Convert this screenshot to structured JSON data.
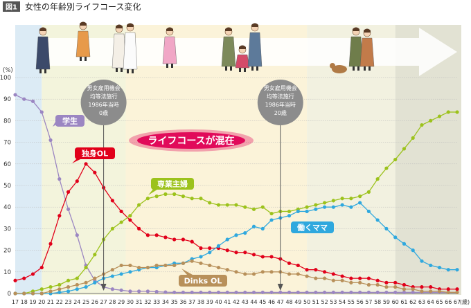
{
  "header": {
    "badge": "図1",
    "title": "女性の年齢別ライフコース変化"
  },
  "colors": {
    "student": "#9b86c2",
    "single_ol": "#e1001a",
    "housewife": "#9cc21c",
    "working_mom": "#2fa8de",
    "dinks": "#b8905a",
    "callout": "#8c8c8c",
    "banner": "#e10a5a"
  },
  "annotations": {
    "callout_left": [
      "男女雇用機会",
      "均等法施行",
      "1986年当時",
      "0歳"
    ],
    "callout_right": [
      "男女雇用機会",
      "均等法施行",
      "1986年当時",
      "20歳"
    ],
    "callout_left_x": 27,
    "callout_right_x": 47,
    "banner": "ライフコースが混在"
  },
  "illustrations": [
    "kimono-woman-icon",
    "young-woman-icon",
    "wedding-couple-icon",
    "pregnant-woman-icon",
    "family-icon",
    "elderly-couple-dog-icon"
  ],
  "chart_data": {
    "type": "line",
    "y_unit": "(%)",
    "x_unit": "(歳)",
    "ylim": [
      0,
      100
    ],
    "yticks": [
      0,
      10,
      20,
      30,
      40,
      50,
      60,
      70,
      80,
      90,
      100
    ],
    "x": [
      17,
      18,
      19,
      20,
      21,
      22,
      23,
      24,
      25,
      26,
      27,
      28,
      29,
      30,
      31,
      32,
      33,
      34,
      35,
      36,
      37,
      38,
      39,
      40,
      41,
      42,
      43,
      44,
      45,
      46,
      47,
      48,
      49,
      50,
      51,
      52,
      53,
      54,
      55,
      56,
      57,
      58,
      59,
      60,
      61,
      62,
      63,
      64,
      65,
      66,
      67
    ],
    "grid": true,
    "series": [
      {
        "name": "学生",
        "key": "student",
        "values": [
          92,
          90,
          89,
          84,
          71,
          53,
          39,
          27,
          13,
          6,
          3,
          2,
          1.5,
          1,
          1,
          1,
          0.8,
          0.6,
          0.5,
          0.5,
          0.5,
          0.5,
          0.5,
          0.5,
          0.5,
          0.5,
          0.5,
          0.5,
          0.5,
          0.5,
          0.5,
          0.5,
          0.5,
          0.5,
          0.5,
          0.5,
          0.5,
          0.5,
          0.5,
          0.5,
          0.5,
          0.5,
          0.5,
          0.5,
          0.5,
          0.5,
          0.5,
          0.5,
          0.5,
          0.5,
          0.5
        ]
      },
      {
        "name": "独身OL",
        "key": "single_ol",
        "values": [
          6,
          7,
          9,
          12,
          23,
          36,
          47,
          52,
          60,
          56,
          49,
          43,
          38,
          34,
          30,
          27,
          27,
          26,
          25,
          25,
          24,
          21,
          21,
          21,
          20,
          19,
          19,
          18,
          17,
          17,
          16,
          14,
          13,
          11,
          11,
          10,
          9,
          8,
          7,
          7,
          7,
          6,
          5,
          5,
          4,
          3,
          3,
          3,
          2,
          2,
          2
        ]
      },
      {
        "name": "専業主婦",
        "key": "housewife",
        "values": [
          0,
          0,
          1,
          2,
          3,
          4,
          6,
          7,
          12,
          18,
          25,
          30,
          33,
          36,
          41,
          44,
          45,
          46,
          46,
          45,
          44,
          44,
          42,
          41,
          41,
          41,
          40,
          39,
          40,
          37,
          38,
          38,
          39,
          40,
          41,
          42,
          43,
          44,
          44,
          45,
          47,
          53,
          58,
          62,
          67,
          72,
          78,
          80,
          82,
          84,
          84
        ]
      },
      {
        "name": "働くママ",
        "key": "working_mom",
        "values": [
          0,
          0,
          0,
          0,
          0,
          0.5,
          1,
          2,
          3,
          5,
          7,
          8,
          9,
          10,
          11,
          12,
          12,
          13,
          14,
          14,
          16,
          17,
          19,
          22,
          25,
          27,
          28,
          31,
          30,
          34,
          35,
          36,
          38,
          38,
          39,
          40,
          40,
          41,
          40,
          42,
          38,
          34,
          30,
          26,
          23,
          20,
          15,
          13,
          12,
          11,
          11
        ]
      },
      {
        "name": "Dinks OL",
        "key": "dinks",
        "values": [
          0,
          0,
          0,
          0,
          1,
          2,
          3,
          4,
          5,
          7,
          9,
          11,
          13,
          13,
          12,
          12,
          13,
          13,
          13,
          14,
          15,
          14,
          13,
          12,
          11,
          10,
          9,
          9,
          10,
          10,
          10,
          9,
          9,
          8,
          7,
          7,
          6,
          6,
          5,
          5,
          4,
          4,
          3,
          3,
          2,
          2,
          1,
          1,
          1,
          0.5,
          0.5
        ]
      }
    ]
  }
}
